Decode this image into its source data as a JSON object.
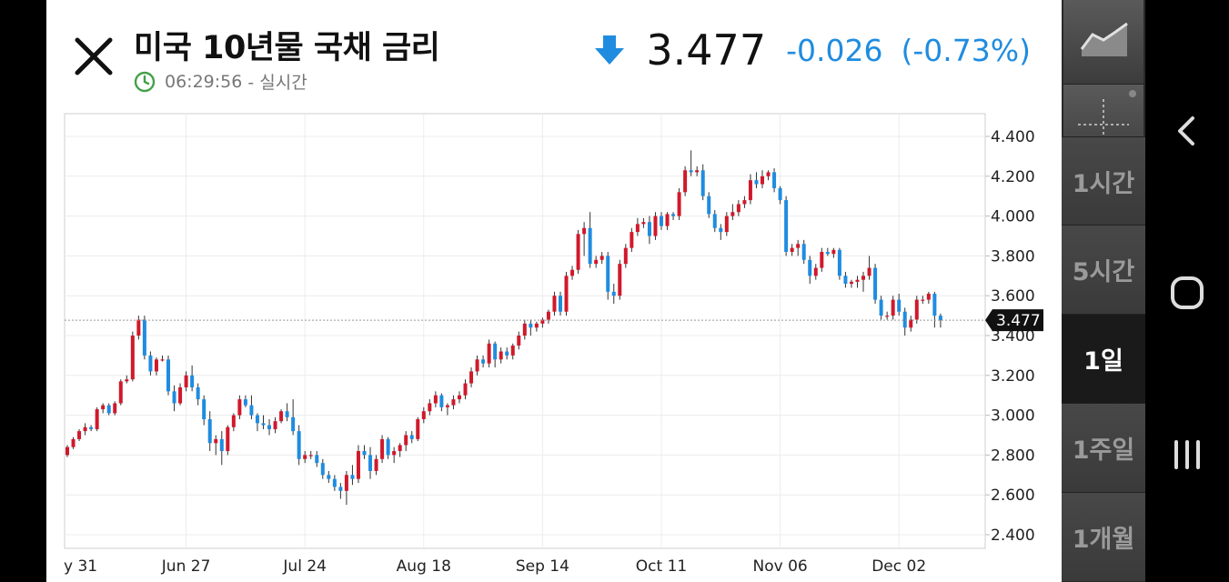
{
  "header": {
    "title": "미국 10년물 국채 금리",
    "time": "06:29:56",
    "mode": "- 실시간",
    "price": "3.477",
    "change": "-0.026",
    "change_pct": "(-0.73%)"
  },
  "colors": {
    "up": "#d0192b",
    "down": "#1f8ce0",
    "change_text": "#1f8ce0",
    "clock": "#43a047"
  },
  "sidebar": {
    "chart_type_icon": "line-chart-icon",
    "crosshair_icon": "crosshair-icon",
    "ranges": [
      "1시간",
      "5시간",
      "1일",
      "1주일",
      "1개월"
    ],
    "active_range": "1일"
  },
  "navbar": {
    "back_icon": "back-icon",
    "home_icon": "home-icon",
    "recents_icon": "recents-icon"
  },
  "chart_data": {
    "type": "candlestick",
    "x_labels": [
      "y 31",
      "Jun 27",
      "Jul 24",
      "Aug 18",
      "Sep 14",
      "Oct 11",
      "Nov 06",
      "Dec 02"
    ],
    "x_label_bar_index": [
      0,
      20,
      40,
      60,
      80,
      100,
      120,
      140
    ],
    "y_ticks": [
      "4.400",
      "4.200",
      "4.000",
      "3.800",
      "3.600",
      "3.400",
      "3.200",
      "3.000",
      "2.800",
      "2.600",
      "2.400"
    ],
    "ylim": [
      2.38,
      4.45
    ],
    "last_price_label": "3.477",
    "last_price": 3.477,
    "grid": true,
    "candles": [
      [
        2.8,
        2.85,
        2.79,
        2.84
      ],
      [
        2.84,
        2.89,
        2.83,
        2.88
      ],
      [
        2.88,
        2.93,
        2.87,
        2.92
      ],
      [
        2.92,
        2.96,
        2.9,
        2.94
      ],
      [
        2.94,
        2.95,
        2.92,
        2.93
      ],
      [
        2.93,
        3.04,
        2.92,
        3.03
      ],
      [
        3.03,
        3.06,
        3.01,
        3.05
      ],
      [
        3.05,
        3.06,
        3.0,
        3.01
      ],
      [
        3.01,
        3.07,
        3.0,
        3.06
      ],
      [
        3.06,
        3.18,
        3.05,
        3.17
      ],
      [
        3.17,
        3.2,
        3.16,
        3.18
      ],
      [
        3.18,
        3.42,
        3.17,
        3.4
      ],
      [
        3.4,
        3.5,
        3.38,
        3.48
      ],
      [
        3.48,
        3.5,
        3.28,
        3.3
      ],
      [
        3.3,
        3.32,
        3.2,
        3.22
      ],
      [
        3.22,
        3.29,
        3.2,
        3.28
      ],
      [
        3.28,
        3.3,
        3.27,
        3.28
      ],
      [
        3.28,
        3.3,
        3.1,
        3.12
      ],
      [
        3.12,
        3.15,
        3.02,
        3.06
      ],
      [
        3.06,
        3.16,
        3.05,
        3.14
      ],
      [
        3.14,
        3.22,
        3.12,
        3.2
      ],
      [
        3.2,
        3.25,
        3.12,
        3.14
      ],
      [
        3.14,
        3.16,
        3.05,
        3.08
      ],
      [
        3.08,
        3.1,
        2.95,
        2.98
      ],
      [
        2.98,
        3.02,
        2.82,
        2.86
      ],
      [
        2.86,
        2.9,
        2.8,
        2.88
      ],
      [
        2.88,
        2.92,
        2.75,
        2.82
      ],
      [
        2.82,
        2.95,
        2.8,
        2.94
      ],
      [
        2.94,
        3.01,
        2.92,
        3.0
      ],
      [
        3.0,
        3.1,
        2.98,
        3.08
      ],
      [
        3.08,
        3.1,
        3.04,
        3.05
      ],
      [
        3.05,
        3.1,
        2.98,
        3.0
      ],
      [
        3.0,
        3.01,
        2.92,
        2.96
      ],
      [
        2.96,
        3.0,
        2.93,
        2.95
      ],
      [
        2.95,
        2.98,
        2.9,
        2.93
      ],
      [
        2.93,
        2.99,
        2.91,
        2.97
      ],
      [
        2.97,
        3.03,
        2.96,
        3.02
      ],
      [
        3.02,
        3.06,
        2.97,
        2.99
      ],
      [
        2.99,
        3.08,
        2.9,
        2.92
      ],
      [
        2.92,
        2.95,
        2.75,
        2.78
      ],
      [
        2.78,
        2.82,
        2.76,
        2.8
      ],
      [
        2.8,
        2.82,
        2.78,
        2.8
      ],
      [
        2.8,
        2.82,
        2.74,
        2.76
      ],
      [
        2.76,
        2.78,
        2.68,
        2.7
      ],
      [
        2.7,
        2.72,
        2.66,
        2.68
      ],
      [
        2.68,
        2.7,
        2.62,
        2.64
      ],
      [
        2.64,
        2.66,
        2.58,
        2.62
      ],
      [
        2.62,
        2.72,
        2.55,
        2.7
      ],
      [
        2.7,
        2.75,
        2.65,
        2.68
      ],
      [
        2.68,
        2.85,
        2.66,
        2.82
      ],
      [
        2.82,
        2.85,
        2.78,
        2.8
      ],
      [
        2.8,
        2.84,
        2.68,
        2.72
      ],
      [
        2.72,
        2.8,
        2.7,
        2.78
      ],
      [
        2.78,
        2.9,
        2.76,
        2.88
      ],
      [
        2.88,
        2.89,
        2.78,
        2.8
      ],
      [
        2.8,
        2.84,
        2.76,
        2.82
      ],
      [
        2.82,
        2.86,
        2.79,
        2.85
      ],
      [
        2.85,
        2.92,
        2.82,
        2.9
      ],
      [
        2.9,
        2.92,
        2.86,
        2.88
      ],
      [
        2.88,
        2.99,
        2.87,
        2.98
      ],
      [
        2.98,
        3.04,
        2.96,
        3.02
      ],
      [
        3.02,
        3.08,
        3.0,
        3.06
      ],
      [
        3.06,
        3.12,
        3.04,
        3.1
      ],
      [
        3.1,
        3.11,
        3.02,
        3.04
      ],
      [
        3.04,
        3.06,
        3.0,
        3.05
      ],
      [
        3.05,
        3.1,
        3.03,
        3.08
      ],
      [
        3.08,
        3.12,
        3.06,
        3.1
      ],
      [
        3.1,
        3.18,
        3.08,
        3.16
      ],
      [
        3.16,
        3.24,
        3.14,
        3.22
      ],
      [
        3.22,
        3.3,
        3.2,
        3.28
      ],
      [
        3.28,
        3.3,
        3.24,
        3.26
      ],
      [
        3.26,
        3.38,
        3.24,
        3.36
      ],
      [
        3.36,
        3.37,
        3.24,
        3.28
      ],
      [
        3.28,
        3.34,
        3.26,
        3.32
      ],
      [
        3.32,
        3.34,
        3.28,
        3.3
      ],
      [
        3.3,
        3.36,
        3.28,
        3.35
      ],
      [
        3.35,
        3.42,
        3.33,
        3.4
      ],
      [
        3.4,
        3.48,
        3.38,
        3.46
      ],
      [
        3.46,
        3.48,
        3.4,
        3.44
      ],
      [
        3.44,
        3.47,
        3.42,
        3.46
      ],
      [
        3.46,
        3.49,
        3.44,
        3.48
      ],
      [
        3.48,
        3.53,
        3.46,
        3.52
      ],
      [
        3.52,
        3.62,
        3.5,
        3.6
      ],
      [
        3.6,
        3.62,
        3.5,
        3.52
      ],
      [
        3.52,
        3.72,
        3.5,
        3.7
      ],
      [
        3.7,
        3.75,
        3.68,
        3.73
      ],
      [
        3.73,
        3.93,
        3.71,
        3.91
      ],
      [
        3.91,
        3.97,
        3.8,
        3.94
      ],
      [
        3.94,
        4.02,
        3.74,
        3.76
      ],
      [
        3.76,
        3.8,
        3.74,
        3.78
      ],
      [
        3.78,
        3.82,
        3.76,
        3.8
      ],
      [
        3.8,
        3.82,
        3.58,
        3.62
      ],
      [
        3.62,
        3.66,
        3.56,
        3.6
      ],
      [
        3.6,
        3.78,
        3.58,
        3.76
      ],
      [
        3.76,
        3.86,
        3.74,
        3.84
      ],
      [
        3.84,
        3.94,
        3.82,
        3.92
      ],
      [
        3.92,
        3.99,
        3.9,
        3.96
      ],
      [
        3.96,
        3.99,
        3.94,
        3.97
      ],
      [
        3.97,
        4.0,
        3.86,
        3.9
      ],
      [
        3.9,
        4.02,
        3.88,
        4.0
      ],
      [
        4.0,
        4.02,
        3.93,
        3.95
      ],
      [
        3.95,
        4.02,
        3.93,
        4.01
      ],
      [
        4.01,
        4.02,
        3.98,
        4.0
      ],
      [
        4.0,
        4.14,
        3.98,
        4.12
      ],
      [
        4.12,
        4.25,
        4.1,
        4.23
      ],
      [
        4.23,
        4.33,
        4.2,
        4.22
      ],
      [
        4.22,
        4.25,
        4.2,
        4.23
      ],
      [
        4.23,
        4.26,
        4.08,
        4.1
      ],
      [
        4.1,
        4.12,
        3.99,
        4.01
      ],
      [
        4.01,
        4.03,
        3.92,
        3.94
      ],
      [
        3.94,
        3.96,
        3.88,
        3.92
      ],
      [
        3.92,
        4.02,
        3.9,
        4.0
      ],
      [
        4.0,
        4.06,
        3.98,
        4.02
      ],
      [
        4.02,
        4.08,
        4.0,
        4.06
      ],
      [
        4.06,
        4.1,
        4.04,
        4.08
      ],
      [
        4.08,
        4.21,
        4.06,
        4.18
      ],
      [
        4.18,
        4.22,
        4.14,
        4.16
      ],
      [
        4.16,
        4.23,
        4.14,
        4.2
      ],
      [
        4.2,
        4.23,
        4.18,
        4.22
      ],
      [
        4.22,
        4.24,
        4.12,
        4.14
      ],
      [
        4.14,
        4.15,
        4.06,
        4.08
      ],
      [
        4.08,
        4.1,
        3.8,
        3.82
      ],
      [
        3.82,
        3.86,
        3.8,
        3.84
      ],
      [
        3.84,
        3.88,
        3.8,
        3.86
      ],
      [
        3.86,
        3.88,
        3.76,
        3.78
      ],
      [
        3.78,
        3.8,
        3.66,
        3.7
      ],
      [
        3.7,
        3.76,
        3.68,
        3.74
      ],
      [
        3.74,
        3.84,
        3.72,
        3.82
      ],
      [
        3.82,
        3.84,
        3.8,
        3.81
      ],
      [
        3.81,
        3.84,
        3.79,
        3.83
      ],
      [
        3.83,
        3.84,
        3.68,
        3.7
      ],
      [
        3.7,
        3.72,
        3.64,
        3.66
      ],
      [
        3.66,
        3.68,
        3.64,
        3.67
      ],
      [
        3.67,
        3.7,
        3.64,
        3.68
      ],
      [
        3.68,
        3.72,
        3.62,
        3.7
      ],
      [
        3.7,
        3.8,
        3.68,
        3.74
      ],
      [
        3.74,
        3.76,
        3.56,
        3.58
      ],
      [
        3.58,
        3.6,
        3.48,
        3.5
      ],
      [
        3.5,
        3.52,
        3.48,
        3.5
      ],
      [
        3.5,
        3.6,
        3.48,
        3.58
      ],
      [
        3.58,
        3.61,
        3.5,
        3.52
      ],
      [
        3.52,
        3.54,
        3.4,
        3.44
      ],
      [
        3.44,
        3.5,
        3.42,
        3.48
      ],
      [
        3.48,
        3.6,
        3.46,
        3.58
      ],
      [
        3.58,
        3.6,
        3.56,
        3.58
      ],
      [
        3.58,
        3.62,
        3.56,
        3.61
      ],
      [
        3.61,
        3.62,
        3.44,
        3.5
      ],
      [
        3.5,
        3.51,
        3.44,
        3.477
      ]
    ]
  }
}
